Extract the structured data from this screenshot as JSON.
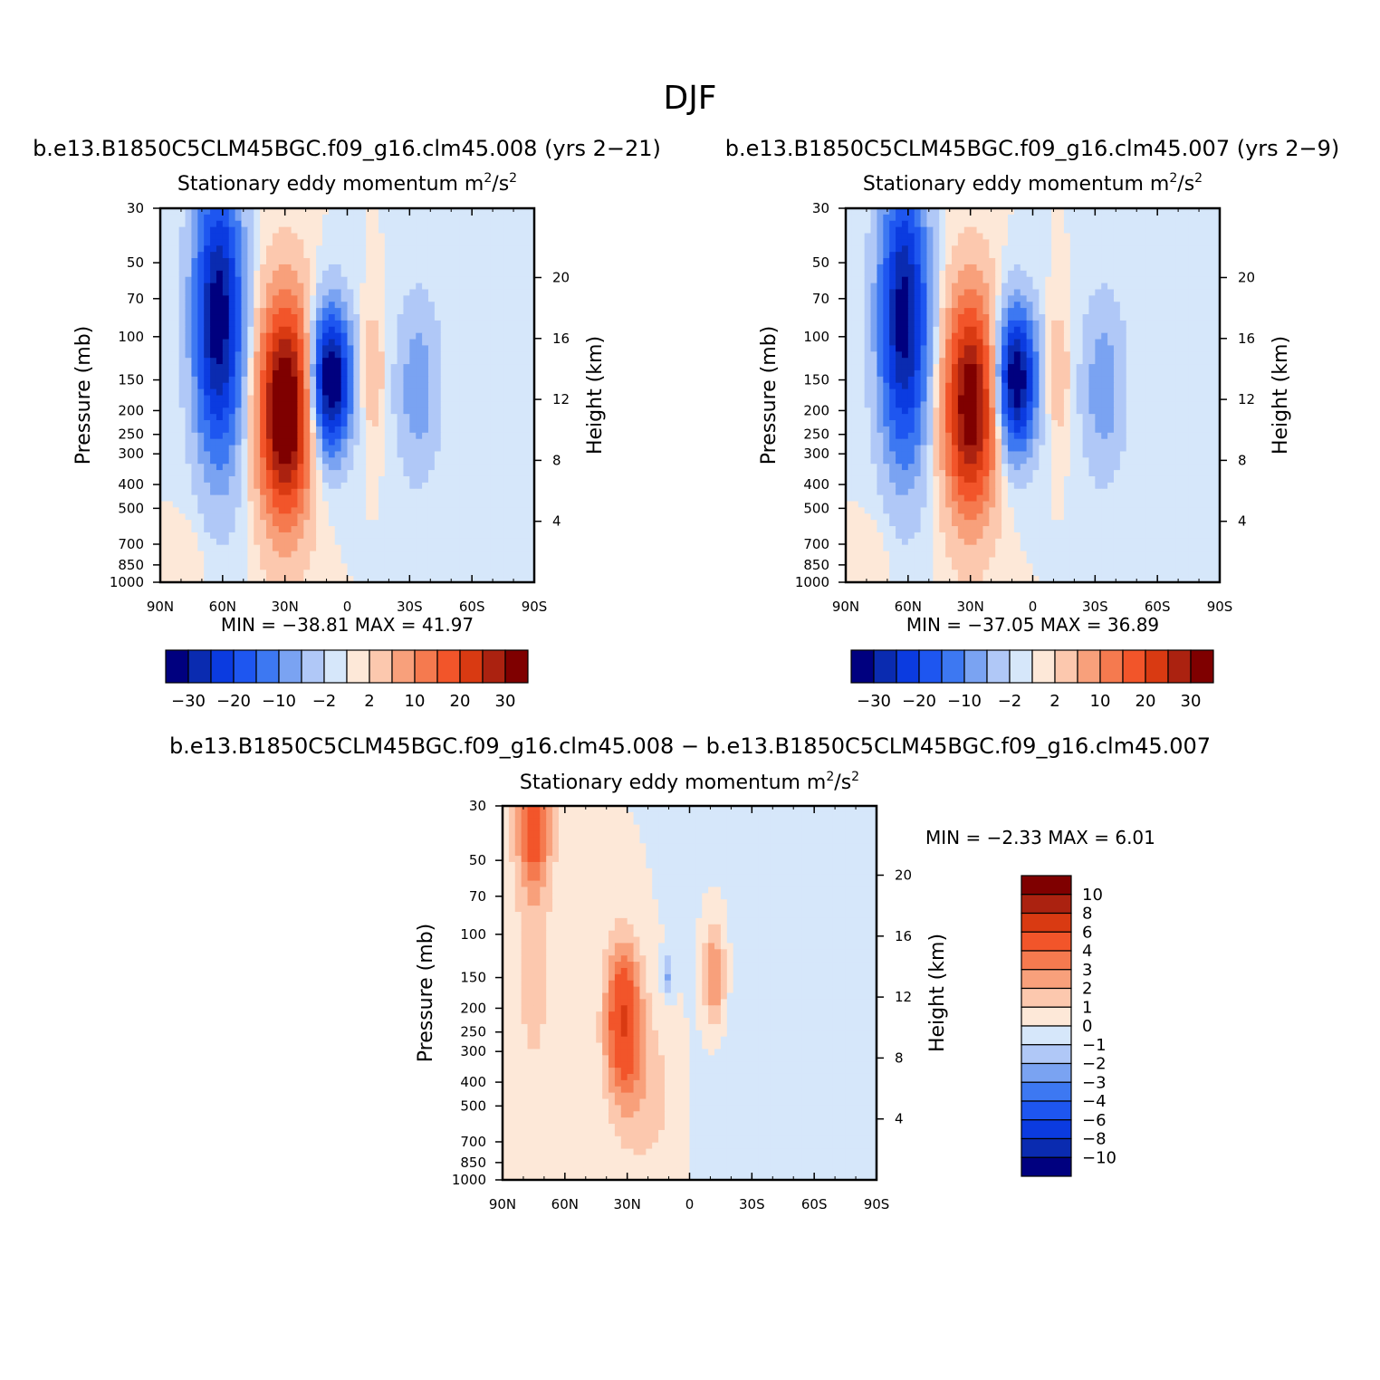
{
  "figure": {
    "title": "DJF"
  },
  "panels": [
    {
      "title": "b.e13.B1850C5CLM45BGC.f09_g16.clm45.008 (yrs 2−21)",
      "subtitle_text": "Stationary eddy momentum",
      "subtitle_units_base": "m",
      "subtitle_units_sep": "/s",
      "subtitle_units_exp": "2",
      "ylabel_left": "Pressure (mb)",
      "ylabel_right": "Height (km)",
      "min_label": "MIN =",
      "min_value": "−38.81",
      "max_label": "MAX =",
      "max_value": "41.97"
    },
    {
      "title": "b.e13.B1850C5CLM45BGC.f09_g16.clm45.007 (yrs 2−9)",
      "subtitle_text": "Stationary eddy momentum",
      "subtitle_units_base": "m",
      "subtitle_units_sep": "/s",
      "subtitle_units_exp": "2",
      "ylabel_left": "Pressure (mb)",
      "ylabel_right": "Height (km)",
      "min_label": "MIN =",
      "min_value": "−37.05",
      "max_label": "MAX =",
      "max_value": "36.89"
    },
    {
      "title": "b.e13.B1850C5CLM45BGC.f09_g16.clm45.008 − b.e13.B1850C5CLM45BGC.f09_g16.clm45.007",
      "subtitle_text": "Stationary eddy momentum",
      "subtitle_units_base": "m",
      "subtitle_units_sep": "/s",
      "subtitle_units_exp": "2",
      "ylabel_left": "Pressure (mb)",
      "ylabel_right": "Height (km)",
      "min_label": "MIN =",
      "min_value": "−2.33",
      "max_label": "MAX =",
      "max_value": "6.01"
    }
  ],
  "chart_data": [
    {
      "type": "heatmap",
      "panel": 0,
      "x_ticks": [
        "90N",
        "60N",
        "30N",
        "0",
        "30S",
        "60S",
        "90S"
      ],
      "x_range_lat": [
        90,
        -90
      ],
      "y_left_ticks": [
        "30",
        "50",
        "70",
        "100",
        "150",
        "200",
        "250",
        "300",
        "400",
        "500",
        "700",
        "850",
        "1000"
      ],
      "y_left_range_mb": [
        30,
        1000
      ],
      "y_scale": "log",
      "y_right_ticks": [
        "20",
        "16",
        "12",
        "8",
        "4"
      ],
      "levels": [
        -30,
        -20,
        -10,
        -2,
        2,
        10,
        20,
        30
      ],
      "level_tick_labels": [
        "−30",
        "−20",
        "−10",
        "−2",
        "2",
        "10",
        "20",
        "30"
      ],
      "colorbar": "horizontal",
      "colors": [
        "#00007f",
        "#0a2bb0",
        "#0b3be0",
        "#1e56f0",
        "#3d78f2",
        "#7aa3f2",
        "#b0c8f7",
        "#d6e7fa",
        "#fde8d8",
        "#fcc8ae",
        "#f8a07b",
        "#f57a4f",
        "#f2552a",
        "#d93a12",
        "#ab2210",
        "#7f0000"
      ],
      "fields": [
        {
          "lat": 62,
          "p": 85,
          "sw": 8,
          "sp": 0.9,
          "amp": -34
        },
        {
          "lat": 30,
          "p": 200,
          "sw": 8.5,
          "sp": 0.7,
          "amp": 40
        },
        {
          "lat": 8,
          "p": 150,
          "sw": 6.5,
          "sp": 0.45,
          "amp": -38
        },
        {
          "lat": -34,
          "p": 160,
          "sw": 7,
          "sp": 0.55,
          "amp": -9
        },
        {
          "lat": -12,
          "p": 140,
          "sw": 4,
          "sp": 0.4,
          "amp": 5
        },
        {
          "lat": 75,
          "p": 800,
          "sw": 6,
          "sp": 0.3,
          "amp": 1.5
        }
      ]
    },
    {
      "type": "heatmap",
      "panel": 1,
      "x_ticks": [
        "90N",
        "60N",
        "30N",
        "0",
        "30S",
        "60S",
        "90S"
      ],
      "x_range_lat": [
        90,
        -90
      ],
      "y_left_ticks": [
        "30",
        "50",
        "70",
        "100",
        "150",
        "200",
        "250",
        "300",
        "400",
        "500",
        "700",
        "850",
        "1000"
      ],
      "y_left_range_mb": [
        30,
        1000
      ],
      "y_scale": "log",
      "y_right_ticks": [
        "20",
        "16",
        "12",
        "8",
        "4"
      ],
      "levels": [
        -30,
        -20,
        -10,
        -2,
        2,
        10,
        20,
        30
      ],
      "level_tick_labels": [
        "−30",
        "−20",
        "−10",
        "−2",
        "2",
        "10",
        "20",
        "30"
      ],
      "colorbar": "horizontal",
      "colors": [
        "#00007f",
        "#0a2bb0",
        "#0b3be0",
        "#1e56f0",
        "#3d78f2",
        "#7aa3f2",
        "#b0c8f7",
        "#d6e7fa",
        "#fde8d8",
        "#fcc8ae",
        "#f8a07b",
        "#f57a4f",
        "#f2552a",
        "#d93a12",
        "#ab2210",
        "#7f0000"
      ],
      "fields": [
        {
          "lat": 62,
          "p": 85,
          "sw": 8,
          "sp": 0.9,
          "amp": -33
        },
        {
          "lat": 30,
          "p": 190,
          "sw": 8.5,
          "sp": 0.7,
          "amp": 35
        },
        {
          "lat": 8,
          "p": 150,
          "sw": 6.5,
          "sp": 0.45,
          "amp": -36
        },
        {
          "lat": -34,
          "p": 160,
          "sw": 7,
          "sp": 0.55,
          "amp": -9
        },
        {
          "lat": -12,
          "p": 140,
          "sw": 4,
          "sp": 0.4,
          "amp": 5
        },
        {
          "lat": 75,
          "p": 800,
          "sw": 6,
          "sp": 0.3,
          "amp": 1.5
        }
      ]
    },
    {
      "type": "heatmap",
      "panel": 2,
      "x_ticks": [
        "90N",
        "60N",
        "30N",
        "0",
        "30S",
        "60S",
        "90S"
      ],
      "x_range_lat": [
        90,
        -90
      ],
      "y_left_ticks": [
        "30",
        "50",
        "70",
        "100",
        "150",
        "200",
        "250",
        "300",
        "400",
        "500",
        "700",
        "850",
        "1000"
      ],
      "y_left_range_mb": [
        30,
        1000
      ],
      "y_scale": "log",
      "y_right_ticks": [
        "20",
        "16",
        "12",
        "8",
        "4"
      ],
      "levels": [
        -10,
        -8,
        -6,
        -4,
        -3,
        -2,
        -1,
        0,
        1,
        2,
        3,
        4,
        6,
        8,
        10
      ],
      "level_tick_labels": [
        "10",
        "8",
        "6",
        "4",
        "3",
        "2",
        "1",
        "0",
        "−1",
        "−2",
        "−3",
        "−4",
        "−6",
        "−8",
        "−10"
      ],
      "colorbar": "vertical",
      "colors": [
        "#00007f",
        "#0a2bb0",
        "#0b3be0",
        "#1e56f0",
        "#3d78f2",
        "#7aa3f2",
        "#b0c8f7",
        "#d6e7fa",
        "#fde8d8",
        "#fcc8ae",
        "#f8a07b",
        "#f57a4f",
        "#f2552a",
        "#d93a12",
        "#ab2210",
        "#7f0000"
      ],
      "fields": [
        {
          "lat": 32,
          "p": 220,
          "sw": 6,
          "sp": 0.5,
          "amp": 5.8
        },
        {
          "lat": 75,
          "p": 35,
          "sw": 6,
          "sp": 0.4,
          "amp": 4.5
        },
        {
          "lat": 75,
          "p": 120,
          "sw": 7,
          "sp": 1.0,
          "amp": 1.5
        },
        {
          "lat": -12,
          "p": 150,
          "sw": 4,
          "sp": 0.35,
          "amp": 3.5
        },
        {
          "lat": 10,
          "p": 150,
          "sw": 2,
          "sp": 0.15,
          "amp": -2.2
        },
        {
          "lat": 20,
          "p": 450,
          "sw": 12,
          "sp": 0.6,
          "amp": 1.5
        },
        {
          "lat": -40,
          "p": 400,
          "sw": 25,
          "sp": 1.2,
          "amp": -1.0
        }
      ]
    }
  ]
}
